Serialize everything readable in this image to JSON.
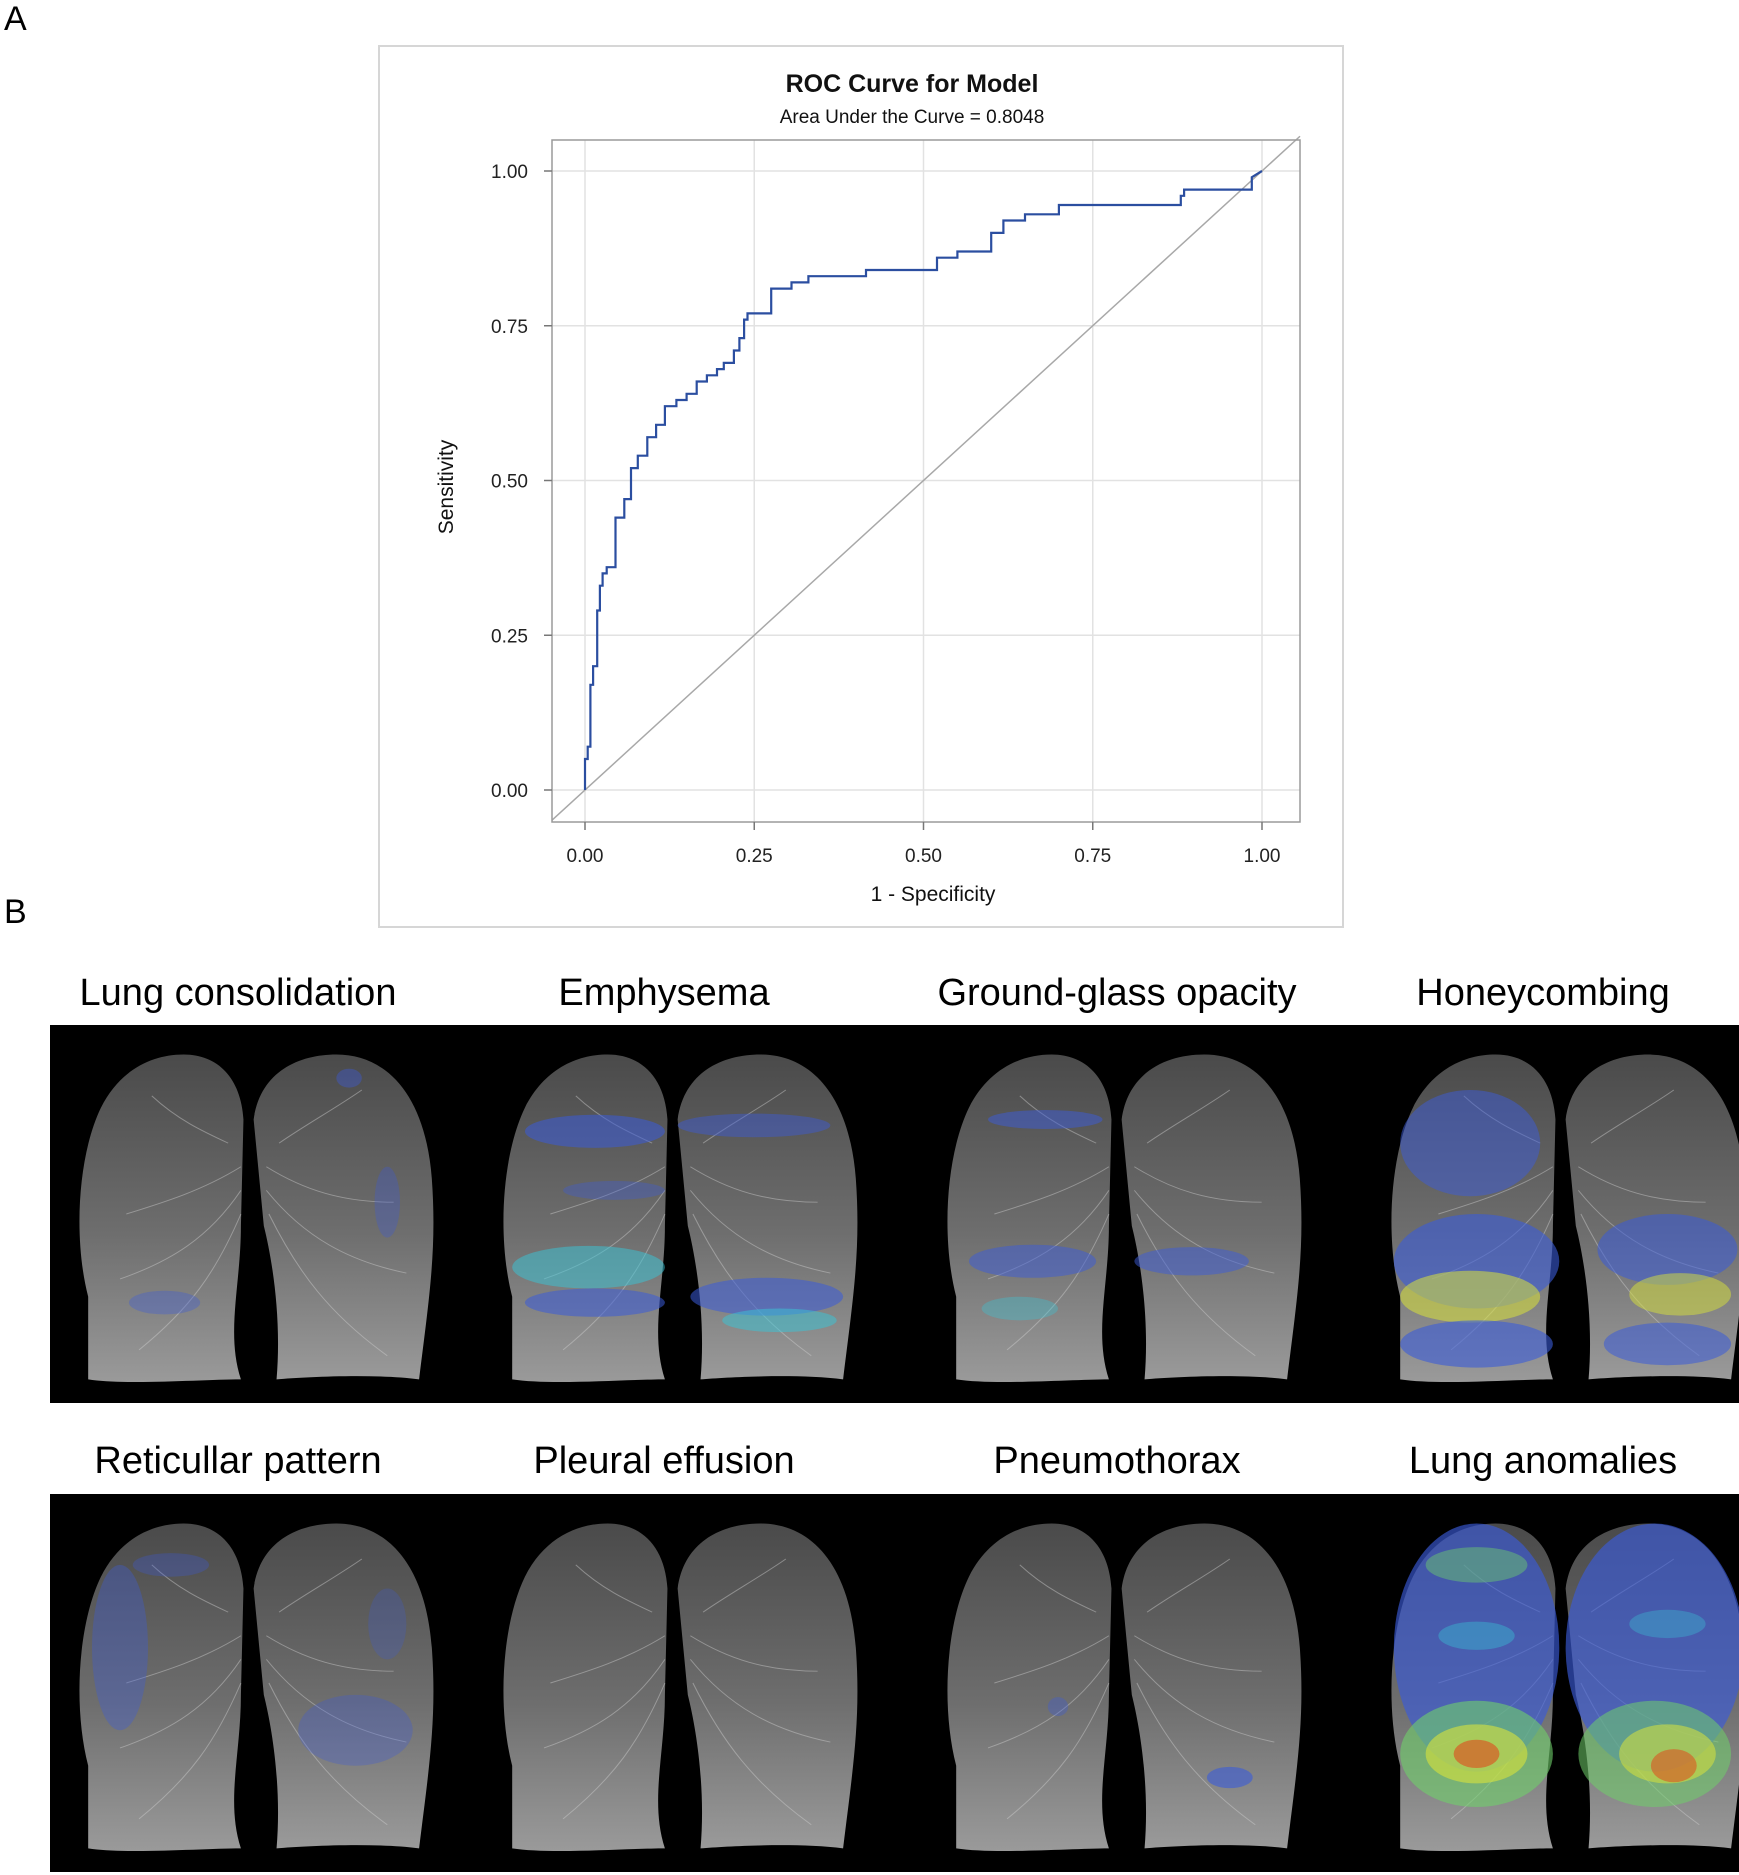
{
  "panel_a_letter": "A",
  "panel_b_letter": "B",
  "chart_data": {
    "type": "line",
    "title": "ROC Curve for Model",
    "subtitle": "Area Under the Curve = 0.8048",
    "xlabel": "1 - Specificity",
    "ylabel": "Sensitivity",
    "xlim": [
      0,
      1
    ],
    "ylim": [
      0,
      1
    ],
    "xticks": [
      "0.00",
      "0.25",
      "0.50",
      "0.75",
      "1.00"
    ],
    "yticks": [
      "0.00",
      "0.25",
      "0.50",
      "0.75",
      "1.00"
    ],
    "grid": true,
    "series": [
      {
        "color": "#2b4ea0",
        "x": [
          0.0,
          0.0,
          0.004,
          0.004,
          0.008,
          0.008,
          0.012,
          0.012,
          0.018,
          0.018,
          0.022,
          0.022,
          0.026,
          0.026,
          0.032,
          0.032,
          0.045,
          0.045,
          0.058,
          0.058,
          0.068,
          0.068,
          0.078,
          0.078,
          0.092,
          0.092,
          0.105,
          0.105,
          0.118,
          0.118,
          0.135,
          0.135,
          0.15,
          0.15,
          0.165,
          0.165,
          0.18,
          0.18,
          0.195,
          0.195,
          0.205,
          0.205,
          0.22,
          0.22,
          0.228,
          0.228,
          0.235,
          0.235,
          0.24,
          0.24,
          0.275,
          0.275,
          0.305,
          0.305,
          0.33,
          0.33,
          0.415,
          0.415,
          0.52,
          0.52,
          0.55,
          0.55,
          0.6,
          0.6,
          0.618,
          0.618,
          0.65,
          0.65,
          0.7,
          0.7,
          0.88,
          0.88,
          0.885,
          0.885,
          0.985,
          0.985,
          1.0
        ],
        "y": [
          0.0,
          0.05,
          0.05,
          0.07,
          0.07,
          0.17,
          0.17,
          0.2,
          0.2,
          0.29,
          0.29,
          0.33,
          0.33,
          0.35,
          0.35,
          0.36,
          0.36,
          0.44,
          0.44,
          0.47,
          0.47,
          0.52,
          0.52,
          0.54,
          0.54,
          0.57,
          0.57,
          0.59,
          0.59,
          0.62,
          0.62,
          0.63,
          0.63,
          0.64,
          0.64,
          0.66,
          0.66,
          0.67,
          0.67,
          0.68,
          0.68,
          0.69,
          0.69,
          0.71,
          0.71,
          0.73,
          0.73,
          0.76,
          0.76,
          0.77,
          0.77,
          0.81,
          0.81,
          0.82,
          0.82,
          0.83,
          0.83,
          0.84,
          0.84,
          0.86,
          0.86,
          0.87,
          0.87,
          0.9,
          0.9,
          0.92,
          0.92,
          0.93,
          0.93,
          0.945,
          0.945,
          0.96,
          0.96,
          0.97,
          0.97,
          0.99,
          1.0
        ]
      }
    ],
    "reference_line": {
      "x": [
        0,
        1
      ],
      "y": [
        0,
        1
      ],
      "color": "#a8a8a8"
    }
  },
  "lung_panels": [
    {
      "label": "Lung consolidation",
      "overlay": "sparse-blue"
    },
    {
      "label": "Emphysema",
      "overlay": "blue-cyan-bands"
    },
    {
      "label": "Ground-glass opacity",
      "overlay": "blue-patches"
    },
    {
      "label": "Honeycombing",
      "overlay": "basal-blue-yellow"
    },
    {
      "label": "Reticullar pattern",
      "overlay": "peripheral-blue"
    },
    {
      "label": "Pleural effusion",
      "overlay": "none"
    },
    {
      "label": "Pneumothorax",
      "overlay": "small-blue"
    },
    {
      "label": "Lung anomalies",
      "overlay": "diffuse-jet-red"
    }
  ]
}
